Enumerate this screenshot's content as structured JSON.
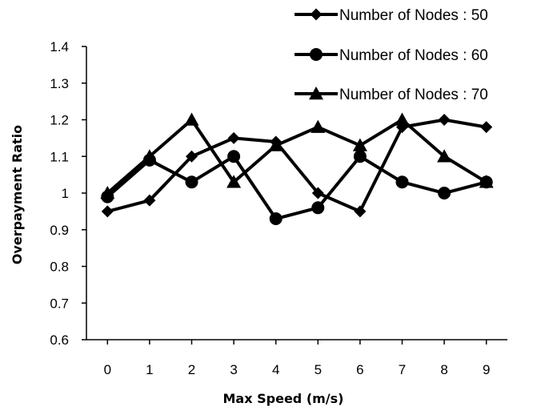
{
  "chart_data": {
    "type": "line",
    "title": "",
    "xlabel": "Max Speed (m/s)",
    "ylabel": "Overpayment Ratio",
    "x": [
      0,
      1,
      2,
      3,
      4,
      5,
      6,
      7,
      8,
      9
    ],
    "ylim": [
      0.6,
      1.4
    ],
    "yticks": [
      "0.6",
      "0.7",
      "0.8",
      "0.9",
      "1",
      "1.1",
      "1.2",
      "1.3",
      "1.4"
    ],
    "grid": false,
    "legend_position": "top-right",
    "series": [
      {
        "name": "Number of Nodes : 50",
        "marker": "diamond",
        "values": [
          0.95,
          0.98,
          1.1,
          1.15,
          1.14,
          1.0,
          0.95,
          1.18,
          1.2,
          1.18
        ]
      },
      {
        "name": "Number of Nodes : 60",
        "marker": "circle",
        "values": [
          0.99,
          1.09,
          1.03,
          1.1,
          0.93,
          0.96,
          1.1,
          1.03,
          1.0,
          1.03
        ]
      },
      {
        "name": "Number of Nodes : 70",
        "marker": "triangle",
        "values": [
          1.0,
          1.1,
          1.2,
          1.03,
          1.13,
          1.18,
          1.13,
          1.2,
          1.1,
          1.03
        ]
      }
    ]
  }
}
